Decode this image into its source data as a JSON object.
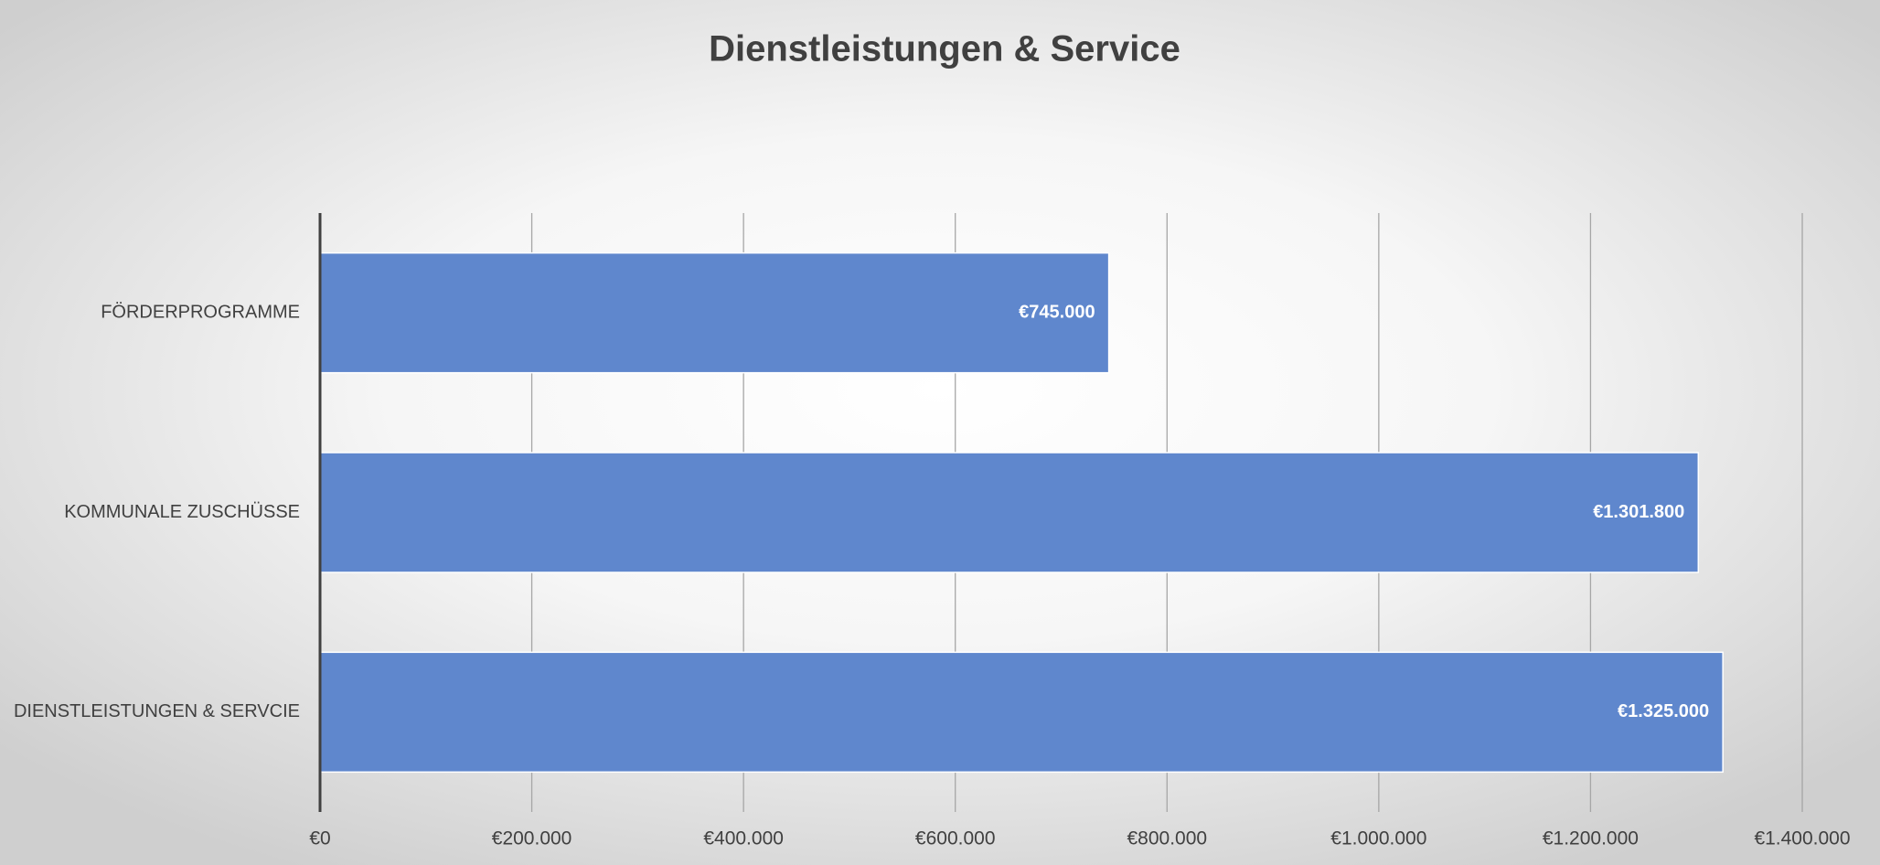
{
  "chart_data": {
    "type": "bar",
    "orientation": "horizontal",
    "title": "Dienstleistungen & Service",
    "categories": [
      "FÖRDERPROGRAMME",
      "KOMMUNALE ZUSCHÜSSE",
      "DIENSTLEISTUNGEN & SERVCIE"
    ],
    "values": [
      745000,
      1301800,
      1325000
    ],
    "value_labels": [
      "€745.000",
      "€1.301.800",
      "€1.325.000"
    ],
    "color": "#5f87cd",
    "xlim": [
      0,
      1400000
    ],
    "xticks": [
      {
        "value": 0,
        "label": "€0"
      },
      {
        "value": 200000,
        "label": "€200.000"
      },
      {
        "value": 400000,
        "label": "€400.000"
      },
      {
        "value": 600000,
        "label": "€600.000"
      },
      {
        "value": 800000,
        "label": "€800.000"
      },
      {
        "value": 1000000,
        "label": "€1.000.000"
      },
      {
        "value": 1200000,
        "label": "€1.200.000"
      },
      {
        "value": 1400000,
        "label": "€1.400.000"
      }
    ],
    "grid": true
  }
}
